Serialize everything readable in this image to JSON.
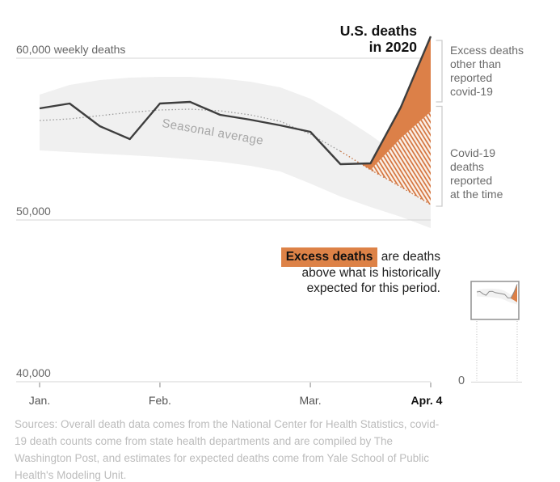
{
  "title": {
    "line1": "U.S. deaths",
    "line2": "in 2020"
  },
  "right_labels": [
    {
      "lines": [
        "Excess deaths",
        "other than",
        "reported",
        "covid-19"
      ]
    },
    {
      "lines": [
        "Covid-19",
        "deaths",
        "reported",
        "at the time"
      ]
    }
  ],
  "note": {
    "highlight": "Excess deaths",
    "rest": " are deaths",
    "line2": "above what is historically",
    "line3": "expected for this period."
  },
  "seasonal_label": "Seasonal average",
  "zero_label": "0",
  "sources": {
    "lines": [
      "Sources: Overall death data comes from the National Center for Health Statistics, covid-",
      "19 death counts come from state health departments and are compiled by The",
      "Washington Post, and estimates for expected deaths come from Yale School of Public",
      "Health's Modeling Unit."
    ]
  },
  "colors": {
    "excess_orange": "#dc8048",
    "hatch_stripe": "#d3713a",
    "hatch_bg": "#fbf2ea",
    "band_gray": "#f0f0f0",
    "actual_line": "#3e3e3e",
    "seasonal_dot_gray": "#9b9b9b",
    "seasonal_dot_orange": "#c46f3d",
    "gridline": "#d4d4d4",
    "tick": "#999999",
    "bracket": "#cccccc",
    "mini_box": "#909090",
    "mini_line": "#8c8c8c",
    "guide": "#b8b8b8",
    "baseline": "#d4d4d4",
    "highlight_bg": "#dd8247"
  },
  "chart_data": {
    "type": "line",
    "title": "U.S. deaths in 2020",
    "ylabel": "weekly deaths",
    "ylim": [
      40000,
      62500
    ],
    "grid": "horizontal",
    "x_unit": "weeks ending Jan 4 - Apr 4, 2020 (14 weekly points)",
    "x_ticks": [
      {
        "label": "Jan.",
        "week": 1,
        "bold": false
      },
      {
        "label": "Feb.",
        "week": 5,
        "bold": false
      },
      {
        "label": "Mar.",
        "week": 10,
        "bold": false
      },
      {
        "label": "Apr. 4",
        "week": 14,
        "bold": true
      }
    ],
    "y_ticks": [
      {
        "value": 60000,
        "label": "60,000 weekly deaths"
      },
      {
        "value": 50000,
        "label": "50,000"
      },
      {
        "value": 40000,
        "label": "40,000"
      }
    ],
    "series": [
      {
        "name": "actual_weekly_deaths_2020",
        "values": [
          56900,
          57200,
          55800,
          55000,
          57200,
          57300,
          56500,
          56200,
          55850,
          55450,
          53450,
          53500,
          56950,
          61350
        ]
      },
      {
        "name": "seasonal_average",
        "values": [
          56150,
          56250,
          56450,
          56650,
          56800,
          56850,
          56750,
          56500,
          56100,
          55300,
          54250,
          53100,
          52050,
          50950
        ]
      },
      {
        "name": "expected_range_upper",
        "values": [
          57750,
          58350,
          58650,
          58800,
          58850,
          58850,
          58750,
          58550,
          58200,
          57500,
          56450,
          55250,
          53900,
          52500
        ]
      },
      {
        "name": "expected_range_lower",
        "values": [
          54300,
          54200,
          54100,
          54000,
          53900,
          53750,
          53600,
          53350,
          53000,
          52250,
          51450,
          50800,
          50200,
          49500
        ]
      },
      {
        "name": "covid_reported_boundary",
        "values": [
          null,
          null,
          null,
          null,
          null,
          null,
          null,
          null,
          null,
          null,
          null,
          53100,
          55050,
          56700
        ]
      }
    ],
    "regions": [
      {
        "name": "excess_deaths_other_than_reported_covid",
        "between": [
          "actual_weekly_deaths_2020",
          "covid_reported_boundary"
        ],
        "style": "solid-orange"
      },
      {
        "name": "covid19_deaths_reported_at_the_time",
        "between": [
          "covid_reported_boundary",
          "seasonal_average"
        ],
        "style": "orange-hatch"
      }
    ],
    "mini_chart": {
      "description": "same series shown with axis extending to 0",
      "zero_label": "0"
    }
  }
}
